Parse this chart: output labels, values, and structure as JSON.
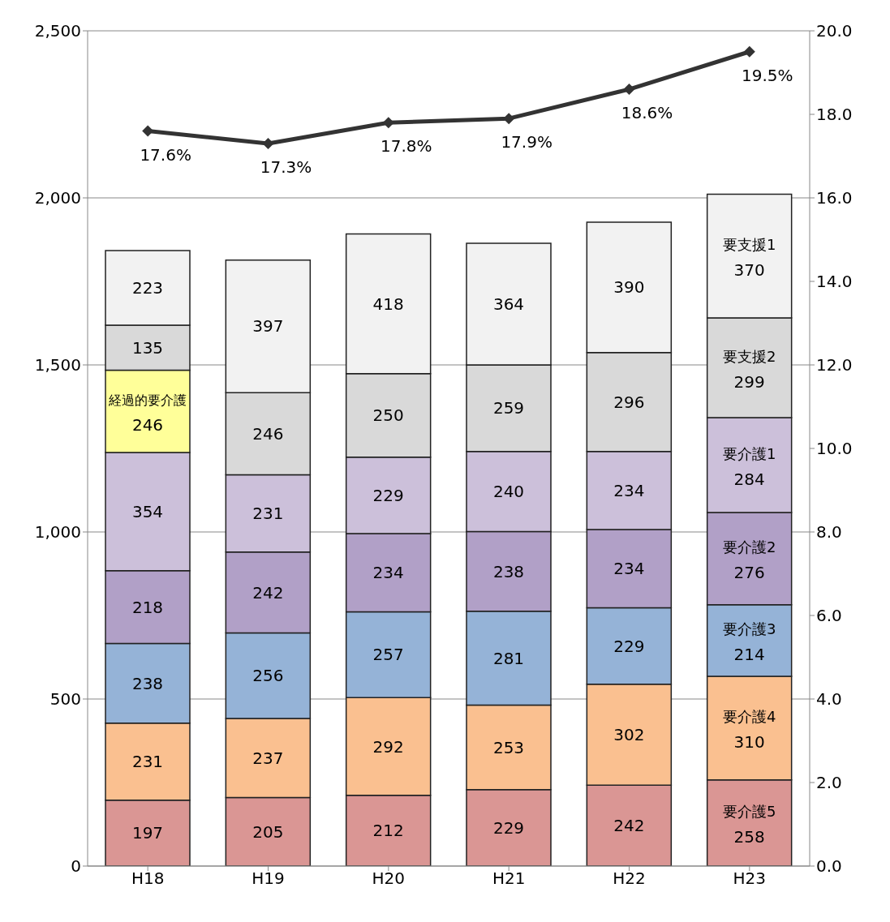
{
  "chart_data": {
    "type": "bar",
    "stacked": true,
    "categories": [
      "H18",
      "H19",
      "H20",
      "H21",
      "H22",
      "H23"
    ],
    "series": [
      {
        "name": "要介護5",
        "color": "#da9694",
        "values": [
          197,
          205,
          212,
          229,
          242,
          258
        ]
      },
      {
        "name": "要介護4",
        "color": "#fac090",
        "values": [
          231,
          237,
          292,
          253,
          302,
          310
        ]
      },
      {
        "name": "要介護3",
        "color": "#95b3d7",
        "values": [
          238,
          256,
          257,
          281,
          229,
          214
        ]
      },
      {
        "name": "要介護2",
        "color": "#b1a0c7",
        "values": [
          218,
          242,
          234,
          238,
          234,
          276
        ]
      },
      {
        "name": "要介護1",
        "color": "#ccc0da",
        "values": [
          354,
          231,
          229,
          240,
          234,
          284
        ]
      },
      {
        "name": "経過的要介護",
        "color": "#ffff99",
        "values": [
          246,
          null,
          null,
          null,
          null,
          null
        ]
      },
      {
        "name": "要支援2",
        "color": "#d9d9d9",
        "values": [
          135,
          246,
          250,
          259,
          296,
          299
        ]
      },
      {
        "name": "要支援1",
        "color": "#f2f2f2",
        "values": [
          223,
          397,
          418,
          364,
          390,
          370
        ]
      },
      {
        "type": "line",
        "axis": "y2",
        "color": "#333333",
        "marker": "diamond",
        "values": [
          17.6,
          17.3,
          17.8,
          17.9,
          18.6,
          19.5
        ],
        "value_labels": [
          "17.6%",
          "17.3%",
          "17.8%",
          "17.9%",
          "18.6%",
          "19.5%"
        ]
      }
    ],
    "ylim": [
      0,
      2500
    ],
    "yticks": [
      {
        "value": 0,
        "label": "0"
      },
      {
        "value": 500,
        "label": "500"
      },
      {
        "value": 1000,
        "label": "1,000"
      },
      {
        "value": 1500,
        "label": "1,500"
      },
      {
        "value": 2000,
        "label": "2,000"
      },
      {
        "value": 2500,
        "label": "2,500"
      }
    ],
    "y2lim": [
      0,
      20
    ],
    "y2ticks": [
      {
        "value": 0,
        "label": "0.0"
      },
      {
        "value": 2,
        "label": "2.0"
      },
      {
        "value": 4,
        "label": "4.0"
      },
      {
        "value": 6,
        "label": "6.0"
      },
      {
        "value": 8,
        "label": "8.0"
      },
      {
        "value": 10,
        "label": "10.0"
      },
      {
        "value": 12,
        "label": "12.0"
      },
      {
        "value": 14,
        "label": "14.0"
      },
      {
        "value": 16,
        "label": "16.0"
      },
      {
        "value": 18,
        "label": "18.0"
      },
      {
        "value": 20,
        "label": "20.0"
      }
    ],
    "grid": "y",
    "legend": false,
    "data_labels": true
  }
}
